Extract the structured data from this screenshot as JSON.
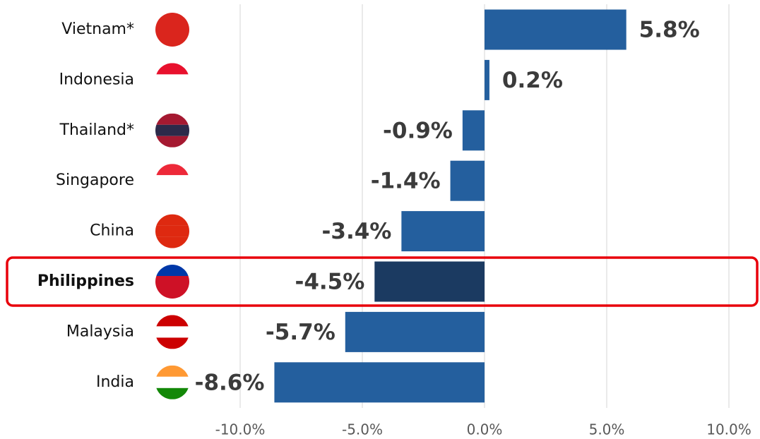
{
  "chart_data": {
    "type": "bar",
    "orientation": "horizontal",
    "categories": [
      "Vietnam*",
      "Indonesia",
      "Thailand*",
      "Singapore",
      "China",
      "Philippines",
      "Malaysia",
      "India"
    ],
    "values": [
      5.8,
      0.2,
      -0.9,
      -1.4,
      -3.4,
      -4.5,
      -5.7,
      -8.6
    ],
    "value_labels": [
      "5.8%",
      "0.2%",
      "-0.9%",
      "-1.4%",
      "-3.4%",
      "-4.5%",
      "-5.7%",
      "-8.6%"
    ],
    "color": "#245f9e",
    "highlight_index": 5,
    "highlight_color": "#1b3a61",
    "xlim": [
      -10,
      10
    ],
    "xticks": [
      {
        "value": -10,
        "label": "-10.0%"
      },
      {
        "value": -5,
        "label": "-5.0%"
      },
      {
        "value": 0,
        "label": "0.0%"
      },
      {
        "value": 5,
        "label": "5.0%"
      },
      {
        "value": 10,
        "label": "10.0%"
      }
    ],
    "grid": true
  }
}
